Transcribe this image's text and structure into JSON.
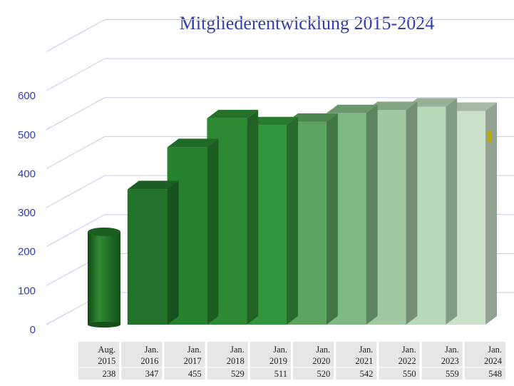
{
  "chart_data": {
    "type": "bar",
    "title": "Mitgliederentwicklung 2015-2024",
    "categories": [
      [
        "Aug.",
        "2015"
      ],
      [
        "Jan.",
        "2016"
      ],
      [
        "Jan.",
        "2017"
      ],
      [
        "Jan.",
        "2018"
      ],
      [
        "Jan.",
        "2019"
      ],
      [
        "Jan.",
        "2020"
      ],
      [
        "Jan.",
        "2021"
      ],
      [
        "Jan.",
        "2022"
      ],
      [
        "Jan.",
        "2023"
      ],
      [
        "Jan.",
        "2024"
      ]
    ],
    "values": [
      238,
      347,
      455,
      529,
      511,
      520,
      542,
      550,
      559,
      548
    ],
    "value_labels": [
      "238",
      "347",
      "455",
      "529",
      "511",
      "520",
      "542",
      "550",
      "559",
      "548"
    ],
    "yticks": [
      "0",
      "100",
      "200",
      "300",
      "400",
      "500",
      "600"
    ],
    "ylim": [
      0,
      700
    ],
    "grid": true,
    "style": "3d",
    "first_bar_shape": "cylinder",
    "colors": {
      "title": "#2f3fae",
      "axis_text": "#2f3fae",
      "gridline": "#c8c8ee",
      "table_bg": "#e6e6e6",
      "bars": [
        "#1e6e22",
        "#21722a",
        "#27822f",
        "#2d8a33",
        "#33953b",
        "#5ba35f",
        "#80b883",
        "#a0c8a2",
        "#b8d8ba",
        "#cae0cb"
      ]
    }
  }
}
